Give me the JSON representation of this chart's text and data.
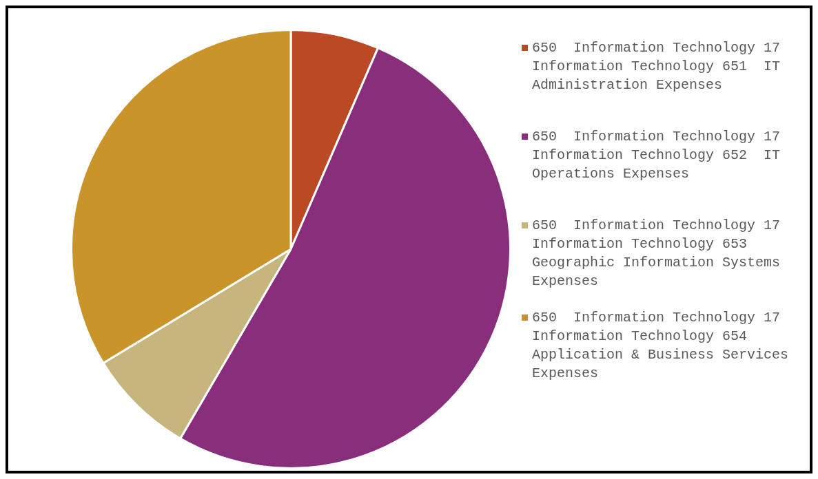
{
  "chart_data": {
    "type": "pie",
    "categories": [
      "650  Information Technology 17  Information Technology 651  IT Administration Expenses",
      "650  Information Technology 17  Information Technology 652  IT Operations Expenses",
      "650  Information Technology 17  Information Technology 653  Geographic Information Systems Expenses",
      "650  Information Technology 17  Information Technology 654  Application & Business Services Expenses"
    ],
    "values": [
      6.5,
      51.9,
      7.9,
      33.7
    ],
    "colors": [
      "#bb4a24",
      "#882e7a",
      "#c6b57c",
      "#c9952a"
    ],
    "legend": "right"
  }
}
